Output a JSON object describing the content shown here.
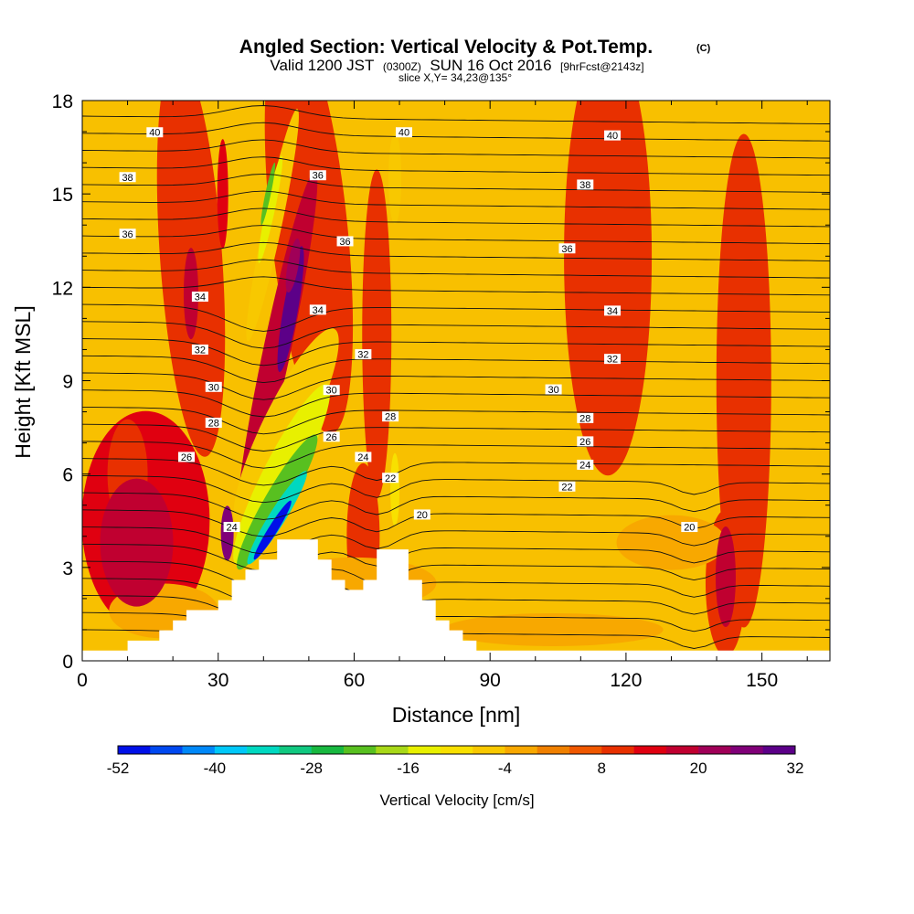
{
  "header": {
    "title": "Angled Section: Vertical Velocity & Pot.Temp.",
    "title_mark": "(C)",
    "valid_prefix": "Valid 1200 JST",
    "valid_utc": "(0300Z)",
    "valid_date": "SUN 16 Oct 2016",
    "forecast": "[9hrFcst@2143z]",
    "slice": "slice X,Y= 34,23@135°"
  },
  "chart_data": {
    "type": "heatmap",
    "xlabel": "Distance [nm]",
    "ylabel": "Height [Kft MSL]",
    "xlim": [
      0,
      165
    ],
    "ylim": [
      0,
      18
    ],
    "x_ticks": [
      0,
      30,
      60,
      90,
      120,
      150
    ],
    "y_ticks": [
      0,
      3,
      6,
      9,
      12,
      15,
      18
    ],
    "colorbar": {
      "label": "Vertical Velocity [cm/s]",
      "ticks": [
        -52,
        -40,
        -28,
        -16,
        -4,
        8,
        20,
        32
      ],
      "range": [
        -52,
        32
      ],
      "colors": [
        "#0010e8",
        "#0048f0",
        "#0088f8",
        "#00c8f8",
        "#00d8c0",
        "#10c880",
        "#18b840",
        "#58c020",
        "#a8d818",
        "#e8f000",
        "#f8e000",
        "#f8c800",
        "#f8a800",
        "#f08000",
        "#f05800",
        "#e83000",
        "#e00010",
        "#c00030",
        "#a00058",
        "#800078",
        "#5c0088"
      ]
    },
    "orography": [
      [
        0,
        0.33
      ],
      [
        10,
        0.33
      ],
      [
        10,
        0.65
      ],
      [
        17,
        0.65
      ],
      [
        17,
        0.98
      ],
      [
        20,
        0.98
      ],
      [
        20,
        1.3
      ],
      [
        23,
        1.3
      ],
      [
        23,
        1.63
      ],
      [
        30,
        1.63
      ],
      [
        30,
        1.95
      ],
      [
        33,
        1.95
      ],
      [
        33,
        2.6
      ],
      [
        36,
        2.6
      ],
      [
        36,
        2.93
      ],
      [
        39,
        2.93
      ],
      [
        39,
        3.25
      ],
      [
        43,
        3.25
      ],
      [
        43,
        3.9
      ],
      [
        52,
        3.9
      ],
      [
        52,
        3.25
      ],
      [
        55,
        3.25
      ],
      [
        55,
        2.6
      ],
      [
        58,
        2.6
      ],
      [
        58,
        2.28
      ],
      [
        62,
        2.28
      ],
      [
        62,
        2.6
      ],
      [
        65,
        2.6
      ],
      [
        65,
        3.58
      ],
      [
        72,
        3.58
      ],
      [
        72,
        2.6
      ],
      [
        75,
        2.6
      ],
      [
        75,
        1.95
      ],
      [
        78,
        1.95
      ],
      [
        78,
        1.3
      ],
      [
        81,
        1.3
      ],
      [
        81,
        0.98
      ],
      [
        84,
        0.98
      ],
      [
        84,
        0.65
      ],
      [
        87,
        0.65
      ],
      [
        87,
        0.33
      ],
      [
        165,
        0.33
      ]
    ],
    "theta_contours": {
      "levels": [
        20,
        22,
        24,
        26,
        28,
        30,
        32,
        34,
        36,
        38,
        40
      ],
      "labels": [
        {
          "text": "40",
          "x": 16,
          "y": 16.98
        },
        {
          "text": "40",
          "x": 71,
          "y": 16.98
        },
        {
          "text": "40",
          "x": 117,
          "y": 16.88
        },
        {
          "text": "38",
          "x": 10,
          "y": 15.54
        },
        {
          "text": "36",
          "x": 52,
          "y": 15.6
        },
        {
          "text": "38",
          "x": 111,
          "y": 15.3
        },
        {
          "text": "36",
          "x": 10,
          "y": 13.72
        },
        {
          "text": "36",
          "x": 58,
          "y": 13.48
        },
        {
          "text": "36",
          "x": 107,
          "y": 13.25
        },
        {
          "text": "34",
          "x": 26,
          "y": 11.7
        },
        {
          "text": "34",
          "x": 52,
          "y": 11.28
        },
        {
          "text": "34",
          "x": 117,
          "y": 11.25
        },
        {
          "text": "32",
          "x": 26,
          "y": 10.0
        },
        {
          "text": "32",
          "x": 62,
          "y": 9.85
        },
        {
          "text": "32",
          "x": 117,
          "y": 9.7
        },
        {
          "text": "30",
          "x": 29,
          "y": 8.8
        },
        {
          "text": "30",
          "x": 55,
          "y": 8.7
        },
        {
          "text": "30",
          "x": 104,
          "y": 8.72
        },
        {
          "text": "28",
          "x": 29,
          "y": 7.65
        },
        {
          "text": "28",
          "x": 68,
          "y": 7.85
        },
        {
          "text": "28",
          "x": 111,
          "y": 7.8
        },
        {
          "text": "26",
          "x": 23,
          "y": 6.55
        },
        {
          "text": "26",
          "x": 55,
          "y": 7.2
        },
        {
          "text": "26",
          "x": 111,
          "y": 7.05
        },
        {
          "text": "24",
          "x": 62,
          "y": 6.55
        },
        {
          "text": "24",
          "x": 111,
          "y": 6.3
        },
        {
          "text": "22",
          "x": 68,
          "y": 5.88
        },
        {
          "text": "22",
          "x": 107,
          "y": 5.6
        },
        {
          "text": "20",
          "x": 75,
          "y": 4.7
        },
        {
          "text": "20",
          "x": 134,
          "y": 4.3
        },
        {
          "text": "24",
          "x": 33,
          "y": 4.3
        }
      ]
    },
    "velocity_features": [
      {
        "x": 44,
        "y": 4.2,
        "value": -52
      },
      {
        "x": 45,
        "y": 7.5,
        "value": -14
      },
      {
        "x": 42,
        "y": 14.5,
        "value": -16
      },
      {
        "x": 46,
        "y": 11.3,
        "value": 30
      },
      {
        "x": 32,
        "y": 4.1,
        "value": 26
      },
      {
        "x": 12,
        "y": 3.8,
        "value": 18
      },
      {
        "x": 142,
        "y": 2.7,
        "value": 18
      }
    ]
  }
}
